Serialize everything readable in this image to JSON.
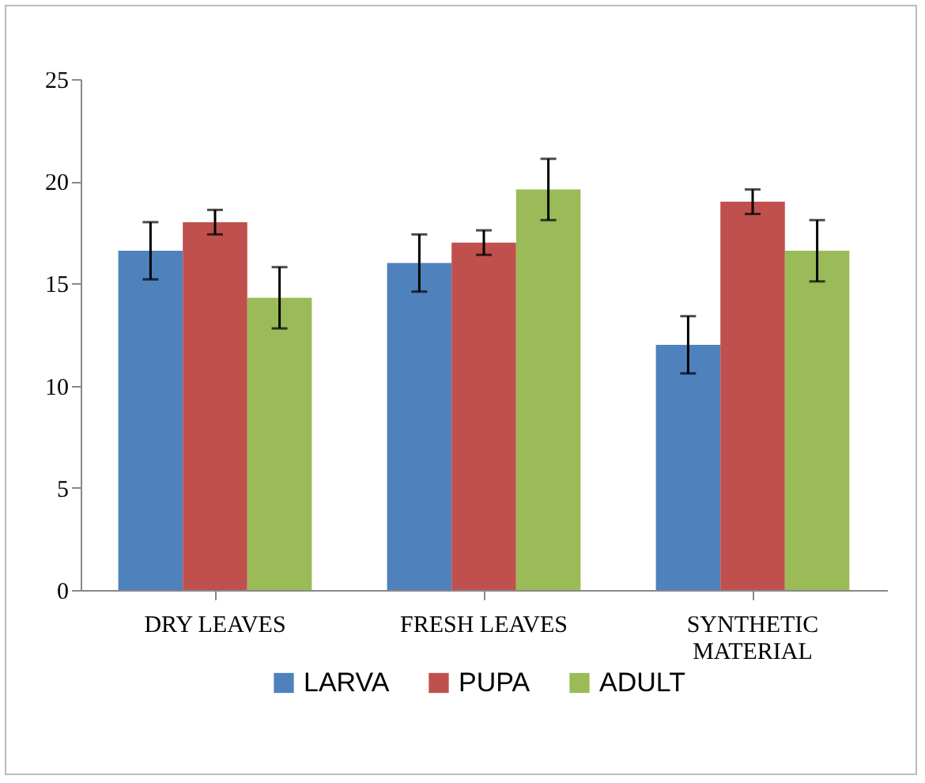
{
  "chart_data": {
    "type": "bar",
    "categories": [
      "DRY LEAVES",
      "FRESH LEAVES",
      "SYNTHETIC MATERIAL"
    ],
    "series": [
      {
        "name": "LARVA",
        "color": "#4f81bd",
        "values": [
          16.6,
          16.0,
          12.0
        ],
        "errors": [
          1.4,
          1.4,
          1.4
        ]
      },
      {
        "name": "PUPA",
        "color": "#c0504d",
        "values": [
          18.0,
          17.0,
          19.0
        ],
        "errors": [
          0.6,
          0.6,
          0.6
        ]
      },
      {
        "name": "ADULT",
        "color": "#9bbb59",
        "values": [
          14.3,
          19.6,
          16.6
        ],
        "errors": [
          1.5,
          1.5,
          1.5
        ]
      }
    ],
    "ylim": [
      0,
      25
    ],
    "yticks": [
      0,
      5,
      10,
      15,
      20,
      25
    ],
    "grid": false,
    "legend": "bottom"
  }
}
